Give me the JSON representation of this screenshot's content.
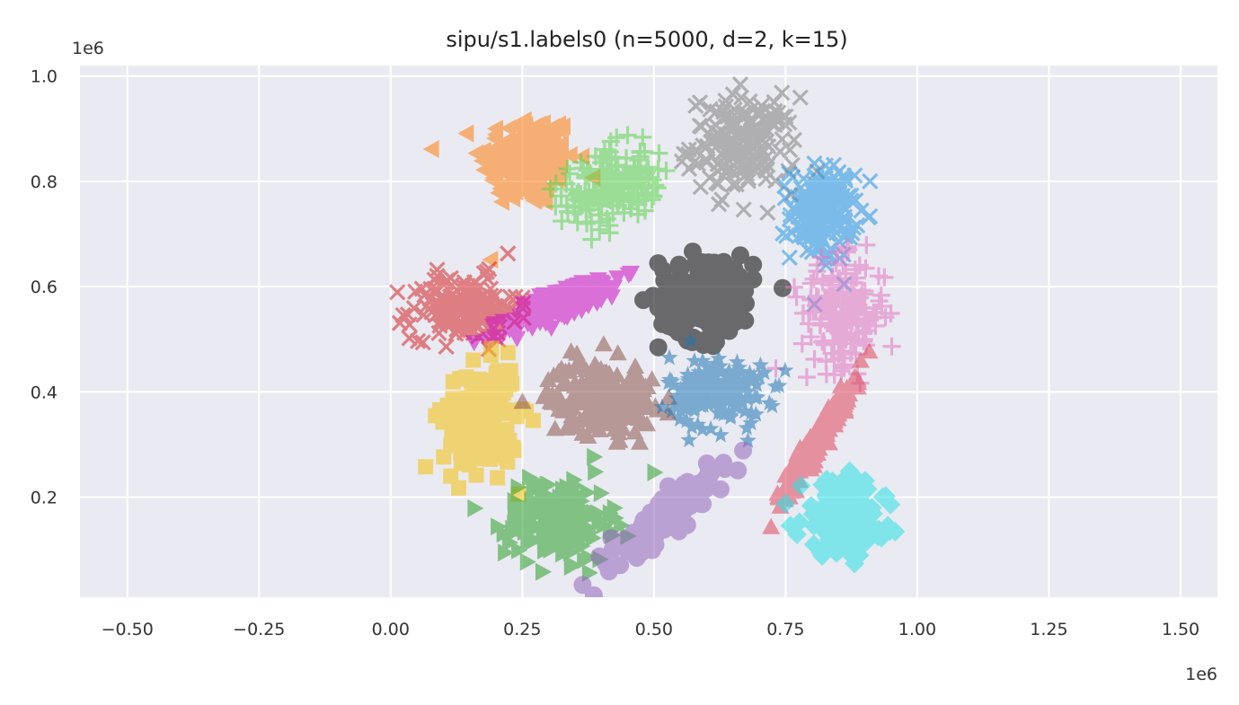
{
  "chart_data": {
    "type": "scatter",
    "title": "sipu/s1.labels0 (n=5000, d=2, k=15)",
    "x_offset_label": "1e6",
    "y_offset_label": "1e6",
    "xlim": [
      -0.59,
      1.57
    ],
    "ylim": [
      0.01,
      1.02
    ],
    "x_ticks": [
      {
        "value": -0.5,
        "label": "−0.50"
      },
      {
        "value": -0.25,
        "label": "−0.25"
      },
      {
        "value": 0.0,
        "label": "0.00"
      },
      {
        "value": 0.25,
        "label": "0.25"
      },
      {
        "value": 0.5,
        "label": "0.50"
      },
      {
        "value": 0.75,
        "label": "0.75"
      },
      {
        "value": 1.0,
        "label": "1.00"
      },
      {
        "value": 1.25,
        "label": "1.25"
      },
      {
        "value": 1.5,
        "label": "1.50"
      }
    ],
    "y_ticks": [
      {
        "value": 0.2,
        "label": "0.2"
      },
      {
        "value": 0.4,
        "label": "0.4"
      },
      {
        "value": 0.6,
        "label": "0.6"
      },
      {
        "value": 0.8,
        "label": "0.8"
      },
      {
        "value": 1.0,
        "label": "1.0"
      }
    ],
    "grid": true,
    "background": "#eaeaf2",
    "clusters": [
      {
        "marker": "triangle-left",
        "color": "#ff7f0e",
        "center": [
          0.26,
          0.84
        ],
        "spread": [
          0.045,
          0.045
        ],
        "angle": 0
      },
      {
        "marker": "plus",
        "color": "#5bd44b",
        "center": [
          0.42,
          0.79
        ],
        "spread": [
          0.045,
          0.035
        ],
        "angle": 20
      },
      {
        "marker": "x",
        "color": "#7f7f7f",
        "center": [
          0.67,
          0.87
        ],
        "spread": [
          0.05,
          0.045
        ],
        "angle": 0
      },
      {
        "marker": "x",
        "color": "#2196e3",
        "center": [
          0.82,
          0.74
        ],
        "spread": [
          0.03,
          0.045
        ],
        "angle": 0
      },
      {
        "marker": "x",
        "color": "#d62728",
        "center": [
          0.14,
          0.56
        ],
        "spread": [
          0.05,
          0.03
        ],
        "angle": 0
      },
      {
        "marker": "triangle-down",
        "color": "#cc0cc2",
        "center": [
          0.33,
          0.57
        ],
        "spread": [
          0.06,
          0.015
        ],
        "angle": 25
      },
      {
        "marker": "circle",
        "color": "#000000",
        "center": [
          0.6,
          0.58
        ],
        "spread": [
          0.045,
          0.04
        ],
        "angle": 0
      },
      {
        "marker": "plus",
        "color": "#e377c2",
        "center": [
          0.86,
          0.55
        ],
        "spread": [
          0.04,
          0.05
        ],
        "angle": 0
      },
      {
        "marker": "square",
        "color": "#f4c20d",
        "center": [
          0.17,
          0.35
        ],
        "spread": [
          0.035,
          0.05
        ],
        "angle": 0
      },
      {
        "marker": "triangle-up",
        "color": "#8c564b",
        "center": [
          0.4,
          0.39
        ],
        "spread": [
          0.05,
          0.035
        ],
        "angle": 0
      },
      {
        "marker": "star",
        "color": "#1f77b4",
        "center": [
          0.62,
          0.4
        ],
        "spread": [
          0.045,
          0.035
        ],
        "angle": 0
      },
      {
        "marker": "triangle-up",
        "color": "#e0475d",
        "center": [
          0.81,
          0.31
        ],
        "spread": [
          0.07,
          0.008
        ],
        "angle": 58
      },
      {
        "marker": "triangle-right",
        "color": "#2ca02c",
        "center": [
          0.32,
          0.16
        ],
        "spread": [
          0.05,
          0.04
        ],
        "angle": 0
      },
      {
        "marker": "circle",
        "color": "#9467bd",
        "center": [
          0.52,
          0.16
        ],
        "spread": [
          0.065,
          0.015
        ],
        "angle": 40
      },
      {
        "marker": "diamond",
        "color": "#2ae2e4",
        "center": [
          0.86,
          0.16
        ],
        "spread": [
          0.04,
          0.035
        ],
        "angle": 0
      }
    ]
  }
}
